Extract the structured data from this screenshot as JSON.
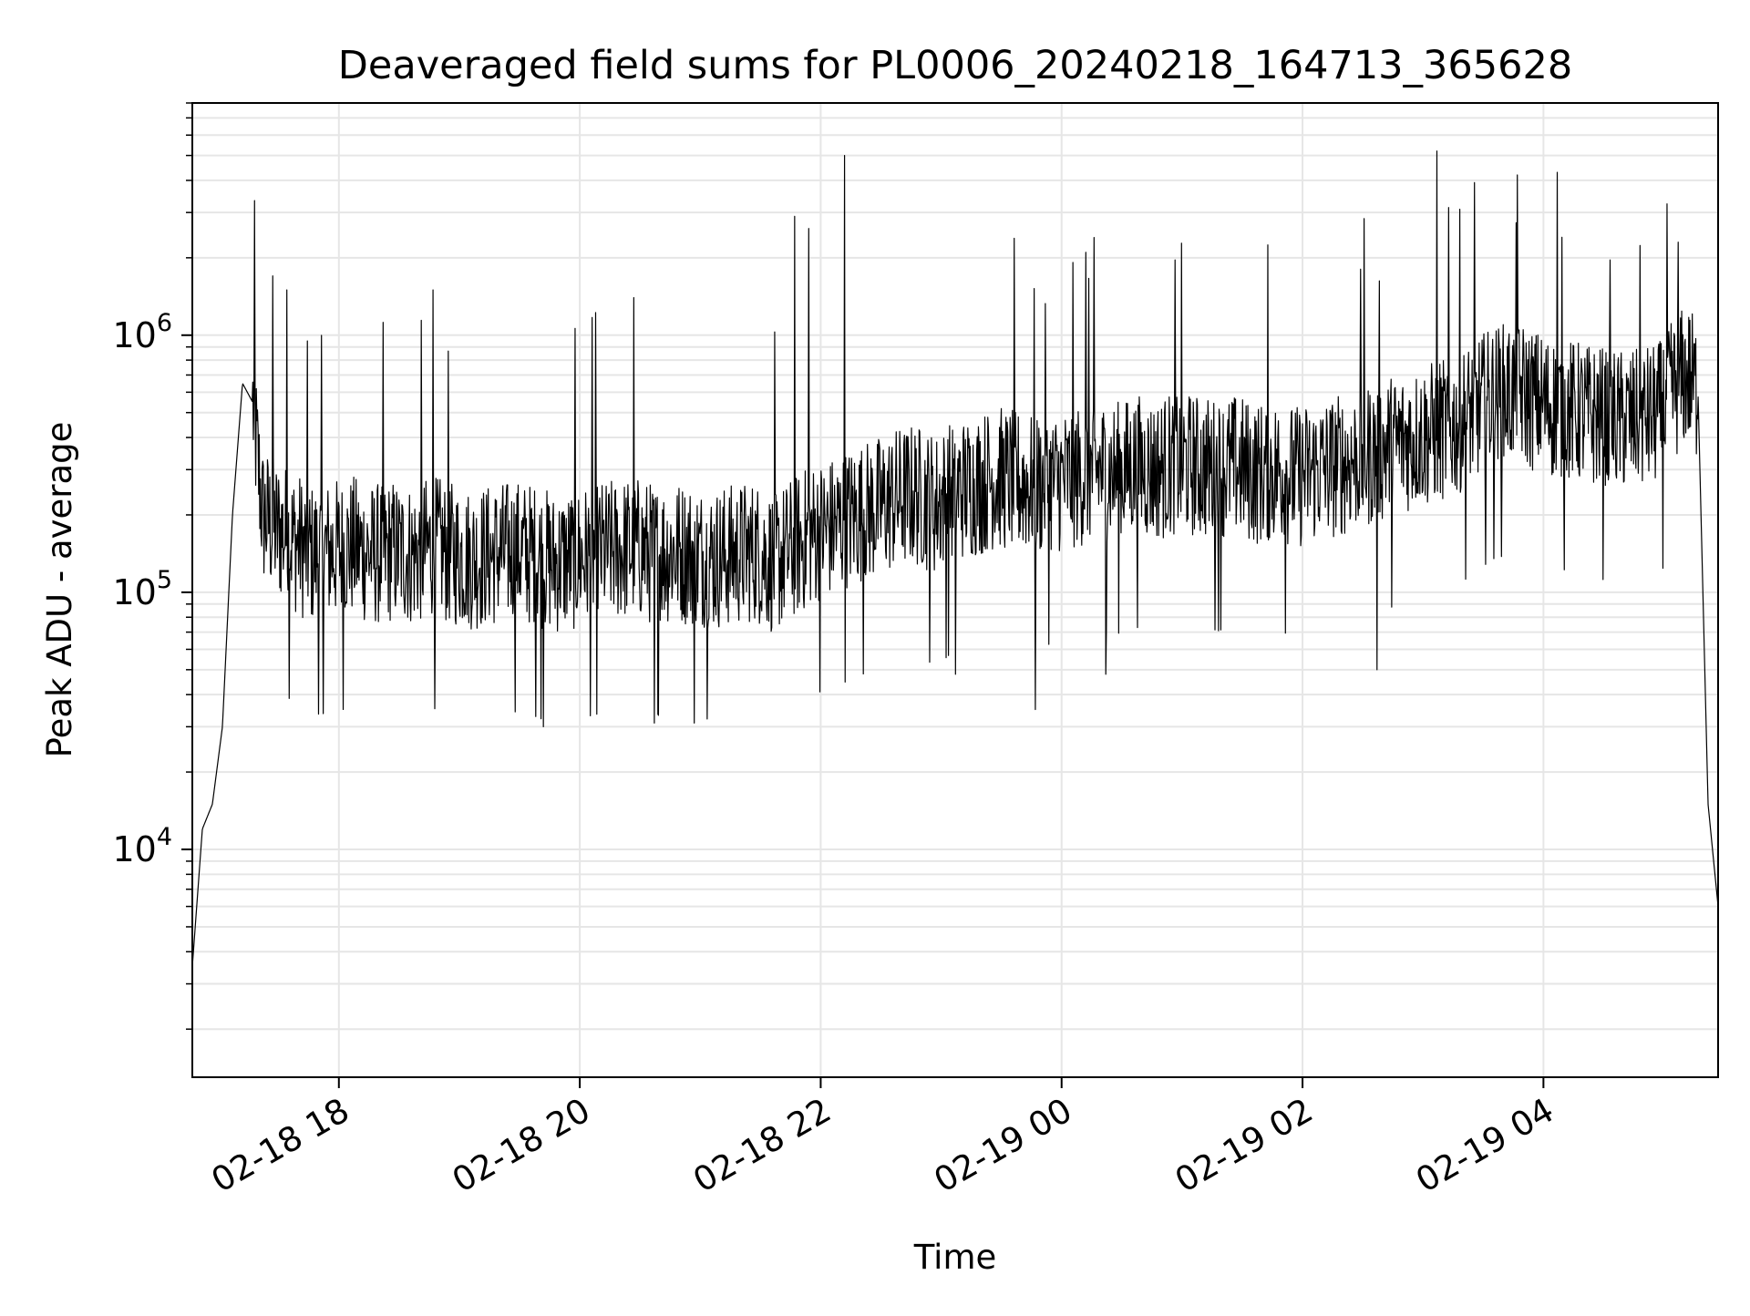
{
  "chart_data": {
    "type": "line",
    "title": "Deaveraged field sums for PL0006_20240218_164713_365628",
    "xlabel": "Time",
    "ylabel": "Peak ADU - average",
    "y_scale": "log",
    "ylim": [
      1300,
      8000000
    ],
    "xlim": [
      "2024-02-18 16:47",
      "2024-02-19 05:27"
    ],
    "grid": true,
    "line_color": "#000000",
    "grid_color": "#e6e6e6",
    "x_ticks": [
      {
        "label": "02-18 18",
        "value": "2024-02-18 18:00"
      },
      {
        "label": "02-18 20",
        "value": "2024-02-18 20:00"
      },
      {
        "label": "02-18 22",
        "value": "2024-02-18 22:00"
      },
      {
        "label": "02-19 00",
        "value": "2024-02-19 00:00"
      },
      {
        "label": "02-19 02",
        "value": "2024-02-19 02:00"
      },
      {
        "label": "02-19 04",
        "value": "2024-02-19 04:00"
      }
    ],
    "y_ticks": [
      {
        "base": "10",
        "exp": "4",
        "value": 10000
      },
      {
        "base": "10",
        "exp": "5",
        "value": 100000
      },
      {
        "base": "10",
        "exp": "6",
        "value": 1000000
      }
    ],
    "series": [
      {
        "x": [
          "2024-02-18 16:47",
          "2024-02-18 16:52",
          "2024-02-18 16:57",
          "2024-02-18 17:02",
          "2024-02-18 17:07",
          "2024-02-18 17:12",
          "2024-02-18 17:17",
          "2024-02-18 17:22",
          "2024-02-18 17:27",
          "2024-02-18 17:32",
          "2024-02-18 17:37",
          "2024-02-18 17:42",
          "2024-02-18 17:47",
          "2024-02-18 17:57",
          "2024-02-18 18:07",
          "2024-02-18 18:17",
          "2024-02-18 18:27",
          "2024-02-18 18:37",
          "2024-02-18 18:47",
          "2024-02-18 18:57",
          "2024-02-18 19:07",
          "2024-02-18 19:17",
          "2024-02-18 19:27",
          "2024-02-18 19:37",
          "2024-02-18 19:47",
          "2024-02-18 19:57",
          "2024-02-18 20:07",
          "2024-02-18 20:17",
          "2024-02-18 20:27",
          "2024-02-18 20:37",
          "2024-02-18 20:47",
          "2024-02-18 20:57",
          "2024-02-18 21:07",
          "2024-02-18 21:17",
          "2024-02-18 21:27",
          "2024-02-18 21:37",
          "2024-02-18 21:47",
          "2024-02-18 21:57",
          "2024-02-18 22:07",
          "2024-02-18 22:17",
          "2024-02-18 22:27",
          "2024-02-18 22:37",
          "2024-02-18 22:47",
          "2024-02-18 22:57",
          "2024-02-18 23:07",
          "2024-02-18 23:17",
          "2024-02-18 23:27",
          "2024-02-18 23:37",
          "2024-02-18 23:47",
          "2024-02-18 23:57",
          "2024-02-19 00:07",
          "2024-02-19 00:17",
          "2024-02-19 00:27",
          "2024-02-19 00:37",
          "2024-02-19 00:47",
          "2024-02-19 00:57",
          "2024-02-19 01:07",
          "2024-02-19 01:17",
          "2024-02-19 01:27",
          "2024-02-19 01:37",
          "2024-02-19 01:47",
          "2024-02-19 01:57",
          "2024-02-19 02:07",
          "2024-02-19 02:17",
          "2024-02-19 02:27",
          "2024-02-19 02:37",
          "2024-02-19 02:47",
          "2024-02-19 02:57",
          "2024-02-19 03:07",
          "2024-02-19 03:17",
          "2024-02-19 03:27",
          "2024-02-19 03:37",
          "2024-02-19 03:47",
          "2024-02-19 03:57",
          "2024-02-19 04:07",
          "2024-02-19 04:17",
          "2024-02-19 04:27",
          "2024-02-19 04:37",
          "2024-02-19 04:47",
          "2024-02-19 04:57",
          "2024-02-19 05:07",
          "2024-02-19 05:12",
          "2024-02-19 05:17",
          "2024-02-19 05:22",
          "2024-02-19 05:27"
        ],
        "y": [
          3500,
          12000,
          15000,
          30000,
          200000,
          650000,
          550000,
          200000,
          180000,
          170000,
          160000,
          150000,
          140000,
          145000,
          150000,
          140000,
          145000,
          140000,
          150000,
          140000,
          135000,
          140000,
          145000,
          140000,
          130000,
          135000,
          140000,
          145000,
          150000,
          140000,
          145000,
          140000,
          135000,
          140000,
          145000,
          130000,
          150000,
          170000,
          180000,
          200000,
          210000,
          230000,
          240000,
          220000,
          250000,
          260000,
          280000,
          270000,
          260000,
          270000,
          280000,
          300000,
          290000,
          310000,
          300000,
          320000,
          310000,
          300000,
          310000,
          290000,
          300000,
          280000,
          300000,
          310000,
          330000,
          350000,
          380000,
          400000,
          420000,
          450000,
          520000,
          580000,
          600000,
          550000,
          520000,
          500000,
          480000,
          460000,
          470000,
          490000,
          650000,
          700000,
          600000,
          15000,
          6000
        ],
        "peaks": [
          {
            "x": "2024-02-18 17:27",
            "y": 1700000
          },
          {
            "x": "2024-02-18 17:34",
            "y": 1500000
          },
          {
            "x": "2024-02-18 18:47",
            "y": 1500000
          },
          {
            "x": "2024-02-18 20:27",
            "y": 1400000
          },
          {
            "x": "2024-02-18 21:47",
            "y": 2900000
          },
          {
            "x": "2024-02-18 21:54",
            "y": 2600000
          },
          {
            "x": "2024-02-18 22:12",
            "y": 5000000
          },
          {
            "x": "2024-02-19 00:12",
            "y": 2100000
          },
          {
            "x": "2024-02-19 03:07",
            "y": 5200000
          },
          {
            "x": "2024-02-19 03:47",
            "y": 4200000
          },
          {
            "x": "2024-02-19 04:07",
            "y": 4300000
          },
          {
            "x": "2024-02-19 05:07",
            "y": 2300000
          }
        ],
        "dips": [
          {
            "x": "2024-02-18 19:42",
            "y": 30000
          },
          {
            "x": "2024-02-18 20:37",
            "y": 31000
          },
          {
            "x": "2024-02-18 20:57",
            "y": 31000
          },
          {
            "x": "2024-02-18 23:07",
            "y": 48000
          },
          {
            "x": "2024-02-18 23:47",
            "y": 35000
          },
          {
            "x": "2024-02-19 00:22",
            "y": 48000
          },
          {
            "x": "2024-02-19 02:37",
            "y": 50000
          }
        ]
      }
    ]
  }
}
